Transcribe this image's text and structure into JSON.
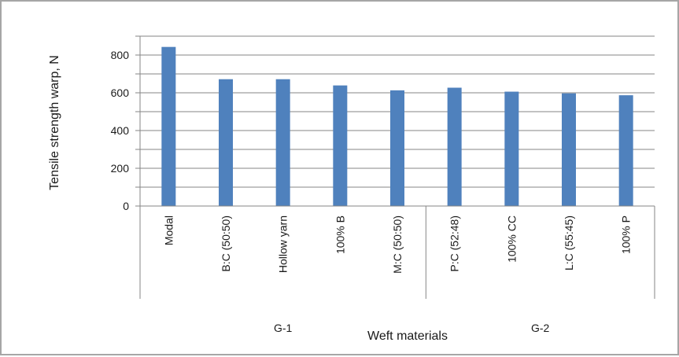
{
  "chart_data": {
    "type": "bar",
    "title": "",
    "xlabel": "Weft materials",
    "ylabel": "Tensile strength warp, N",
    "ylim": [
      0,
      900
    ],
    "yticks": [
      0,
      200,
      400,
      600,
      800
    ],
    "grid": true,
    "categories": [
      "Modal",
      "B:C (50:50)",
      "Hollow yarn",
      "100% B",
      "M:C (50:50)",
      "P:C (52:48)",
      "100% CC",
      "L:C (55:45)",
      "100% P"
    ],
    "values": [
      843,
      672,
      672,
      639,
      613,
      627,
      606,
      597,
      587
    ],
    "groups": [
      {
        "label": "G-1",
        "categories": [
          "Modal",
          "B:C (50:50)",
          "Hollow yarn",
          "100% B",
          "M:C (50:50)"
        ]
      },
      {
        "label": "G-2",
        "categories": [
          "P:C (52:48)",
          "100% CC",
          "L:C (55:45)",
          "100% P"
        ]
      }
    ],
    "bar_color": "#4f81bd"
  }
}
